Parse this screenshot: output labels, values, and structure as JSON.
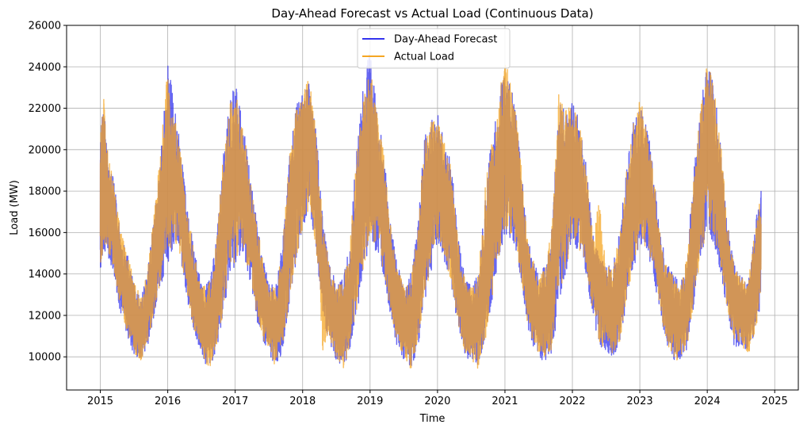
{
  "chart_data": {
    "type": "line",
    "title": "Day-Ahead Forecast vs Actual Load (Continuous Data)",
    "xlabel": "Time",
    "ylabel": "Load (MW)",
    "xlim": [
      2014.5,
      2025.35
    ],
    "ylim": [
      8400,
      26000
    ],
    "x_ticks": [
      2015,
      2016,
      2017,
      2018,
      2019,
      2020,
      2021,
      2022,
      2023,
      2024,
      2025
    ],
    "x_tick_labels": [
      "2015",
      "2016",
      "2017",
      "2018",
      "2019",
      "2020",
      "2021",
      "2022",
      "2023",
      "2024",
      "2025"
    ],
    "y_ticks": [
      10000,
      12000,
      14000,
      16000,
      18000,
      20000,
      22000,
      24000,
      26000
    ],
    "y_tick_labels": [
      "10000",
      "12000",
      "14000",
      "16000",
      "18000",
      "20000",
      "22000",
      "24000",
      "26000"
    ],
    "grid": true,
    "legend_position": "top-center",
    "series": [
      {
        "name": "Day-Ahead Forecast",
        "color": "#3333ee",
        "x": [
          2015.0,
          2015.05,
          2015.1,
          2015.2,
          2015.3,
          2015.4,
          2015.5,
          2015.6,
          2015.7,
          2015.8,
          2015.9,
          2016.0,
          2016.1,
          2016.2,
          2016.3,
          2016.4,
          2016.5,
          2016.6,
          2016.7,
          2016.8,
          2016.9,
          2017.0,
          2017.1,
          2017.2,
          2017.3,
          2017.4,
          2017.5,
          2017.6,
          2017.7,
          2017.8,
          2017.9,
          2018.0,
          2018.1,
          2018.2,
          2018.3,
          2018.4,
          2018.5,
          2018.6,
          2018.7,
          2018.8,
          2018.9,
          2019.0,
          2019.1,
          2019.2,
          2019.3,
          2019.4,
          2019.5,
          2019.6,
          2019.7,
          2019.8,
          2019.9,
          2020.0,
          2020.1,
          2020.2,
          2020.3,
          2020.4,
          2020.5,
          2020.6,
          2020.7,
          2020.8,
          2020.9,
          2021.0,
          2021.1,
          2021.2,
          2021.3,
          2021.4,
          2021.5,
          2021.6,
          2021.7,
          2021.8,
          2021.9,
          2022.0,
          2022.1,
          2022.2,
          2022.3,
          2022.4,
          2022.5,
          2022.6,
          2022.7,
          2022.8,
          2022.9,
          2023.0,
          2023.1,
          2023.2,
          2023.3,
          2023.4,
          2023.5,
          2023.6,
          2023.7,
          2023.8,
          2023.9,
          2024.0,
          2024.1,
          2024.2,
          2024.3,
          2024.4,
          2024.5,
          2024.6,
          2024.7,
          2024.8
        ],
        "low": [
          14000,
          15000,
          15000,
          14000,
          12000,
          11000,
          10000,
          9800,
          10500,
          12000,
          13500,
          14500,
          15500,
          14500,
          12500,
          11000,
          10000,
          9400,
          10000,
          11500,
          13500,
          14500,
          15000,
          14000,
          12000,
          10800,
          10000,
          9600,
          10200,
          12500,
          14500,
          16000,
          17000,
          15000,
          12000,
          10500,
          9800,
          9500,
          10200,
          12000,
          14000,
          15500,
          15000,
          14000,
          12000,
          10500,
          9800,
          9400,
          10200,
          12500,
          14000,
          15500,
          14500,
          13500,
          11500,
          10000,
          9800,
          9600,
          10500,
          12500,
          14500,
          16000,
          15500,
          14500,
          12000,
          10500,
          10000,
          9700,
          10200,
          12500,
          14000,
          15500,
          15000,
          14000,
          12000,
          10500,
          10200,
          10000,
          10500,
          12500,
          14000,
          15500,
          15000,
          14000,
          12000,
          10500,
          9800,
          9700,
          10300,
          12500,
          14500,
          16000,
          15500,
          14000,
          12000,
          10500,
          10500,
          10300,
          11000,
          12500
        ],
        "high": [
          20800,
          22500,
          20000,
          18500,
          16000,
          15000,
          13500,
          13000,
          14000,
          17000,
          20000,
          24400,
          22000,
          20000,
          17000,
          15000,
          13500,
          13800,
          15000,
          19000,
          22000,
          23300,
          21500,
          19500,
          17000,
          15000,
          13500,
          13500,
          15500,
          19500,
          22000,
          23000,
          23500,
          21000,
          16500,
          14500,
          13500,
          13800,
          15500,
          20000,
          23200,
          24900,
          22000,
          20000,
          16500,
          14500,
          13500,
          14000,
          16000,
          20500,
          21500,
          21800,
          20500,
          19500,
          16000,
          14000,
          13500,
          14000,
          17500,
          20500,
          22000,
          24800,
          23000,
          21000,
          17000,
          15000,
          14000,
          14500,
          16500,
          22500,
          22000,
          22300,
          21500,
          19500,
          16000,
          15000,
          14500,
          14500,
          16000,
          19000,
          21500,
          22000,
          21500,
          19000,
          16000,
          14500,
          14000,
          13500,
          15000,
          19000,
          22000,
          24400,
          23000,
          20500,
          16500,
          14500,
          14000,
          13500,
          16000,
          18600
        ]
      },
      {
        "name": "Actual Load",
        "color": "#f5a623",
        "x": [
          2015.0,
          2015.05,
          2015.1,
          2015.2,
          2015.3,
          2015.4,
          2015.5,
          2015.6,
          2015.7,
          2015.8,
          2015.9,
          2016.0,
          2016.1,
          2016.2,
          2016.3,
          2016.4,
          2016.5,
          2016.6,
          2016.7,
          2016.8,
          2016.9,
          2017.0,
          2017.1,
          2017.2,
          2017.3,
          2017.4,
          2017.5,
          2017.6,
          2017.7,
          2017.8,
          2017.9,
          2018.0,
          2018.1,
          2018.2,
          2018.3,
          2018.4,
          2018.5,
          2018.6,
          2018.7,
          2018.8,
          2018.9,
          2019.0,
          2019.1,
          2019.2,
          2019.3,
          2019.4,
          2019.5,
          2019.6,
          2019.7,
          2019.8,
          2019.9,
          2020.0,
          2020.1,
          2020.2,
          2020.3,
          2020.4,
          2020.5,
          2020.6,
          2020.7,
          2020.8,
          2020.9,
          2021.0,
          2021.1,
          2021.2,
          2021.3,
          2021.4,
          2021.5,
          2021.6,
          2021.7,
          2021.8,
          2021.9,
          2022.0,
          2022.1,
          2022.2,
          2022.3,
          2022.4,
          2022.5,
          2022.6,
          2022.7,
          2022.8,
          2022.9,
          2023.0,
          2023.1,
          2023.2,
          2023.3,
          2023.4,
          2023.5,
          2023.6,
          2023.7,
          2023.8,
          2023.9,
          2024.0,
          2024.1,
          2024.2,
          2024.3,
          2024.4,
          2024.5,
          2024.6,
          2024.7,
          2024.8
        ],
        "low": [
          14200,
          15200,
          15200,
          14200,
          12200,
          11200,
          10200,
          9700,
          10600,
          12200,
          13700,
          14700,
          15700,
          14700,
          12700,
          11200,
          10200,
          9300,
          10100,
          11700,
          13700,
          14700,
          15200,
          14200,
          12200,
          11000,
          10200,
          9500,
          10300,
          12700,
          14700,
          16200,
          17200,
          15200,
          10200,
          10700,
          10000,
          9400,
          10300,
          12200,
          14200,
          15700,
          15200,
          14200,
          12200,
          10700,
          10000,
          9300,
          10300,
          12700,
          14200,
          15700,
          14700,
          13700,
          11700,
          10200,
          9900,
          9400,
          10600,
          12700,
          14700,
          16200,
          15700,
          14700,
          12200,
          10700,
          10100,
          9800,
          10300,
          12700,
          14200,
          15700,
          15200,
          14200,
          12200,
          10700,
          10300,
          10100,
          10600,
          12700,
          14200,
          15700,
          15200,
          14200,
          12200,
          10700,
          9900,
          9800,
          10400,
          12700,
          14700,
          16200,
          15700,
          14200,
          12200,
          10700,
          10600,
          10000,
          11100,
          12500
        ],
        "high": [
          20600,
          22500,
          20100,
          18300,
          16100,
          15100,
          13600,
          12900,
          14100,
          17100,
          20100,
          24500,
          21800,
          19800,
          16900,
          14900,
          13400,
          13600,
          14900,
          19100,
          21900,
          23200,
          21400,
          19400,
          16900,
          14900,
          13400,
          13400,
          15400,
          19600,
          21900,
          22400,
          24100,
          20900,
          16400,
          14400,
          13400,
          13700,
          15400,
          19900,
          22500,
          24100,
          21900,
          19900,
          16400,
          14400,
          13400,
          13900,
          15900,
          20400,
          21300,
          21600,
          20400,
          19400,
          15900,
          13900,
          13400,
          13900,
          18000,
          20400,
          21900,
          25200,
          22900,
          20900,
          16900,
          14900,
          13900,
          14400,
          16400,
          23000,
          21900,
          22200,
          21400,
          19400,
          15900,
          17600,
          14400,
          14400,
          15900,
          18900,
          21400,
          22400,
          21400,
          18900,
          15900,
          14400,
          13900,
          13400,
          14900,
          18900,
          21900,
          24900,
          22900,
          20400,
          16400,
          14400,
          13900,
          13400,
          15900,
          18000
        ]
      }
    ]
  }
}
